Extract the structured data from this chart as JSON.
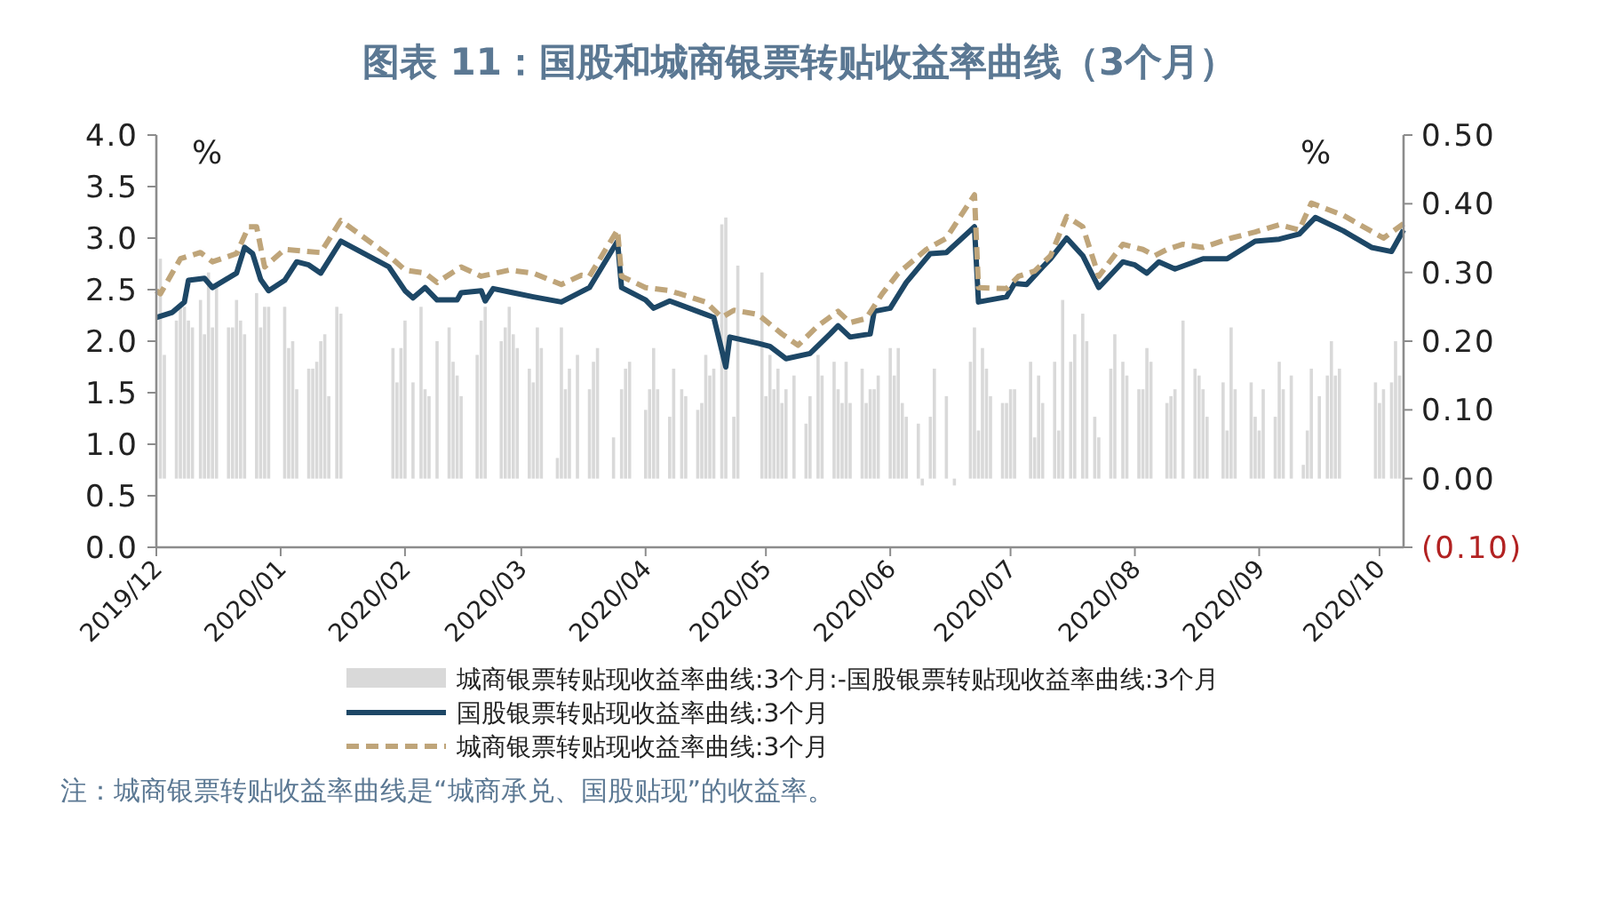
{
  "chart_data": {
    "type": "line",
    "title": "图表 11：国股和城商银票转贴收益率曲线（3个月）",
    "ylabel": "%",
    "y2label": "%",
    "xlim": [
      "2019-12-01",
      "2020-10-07"
    ],
    "xticks": [
      {
        "value": "2019-12-01",
        "label": "2019/12"
      },
      {
        "value": "2020-01-01",
        "label": "2020/01"
      },
      {
        "value": "2020-02-01",
        "label": "2020/02"
      },
      {
        "value": "2020-03-01",
        "label": "2020/03"
      },
      {
        "value": "2020-04-01",
        "label": "2020/04"
      },
      {
        "value": "2020-05-01",
        "label": "2020/05"
      },
      {
        "value": "2020-06-01",
        "label": "2020/06"
      },
      {
        "value": "2020-07-01",
        "label": "2020/07"
      },
      {
        "value": "2020-08-01",
        "label": "2020/08"
      },
      {
        "value": "2020-09-01",
        "label": "2020/09"
      },
      {
        "value": "2020-10-01",
        "label": "2020/10"
      }
    ],
    "ylim": [
      0,
      4
    ],
    "yticks": [
      {
        "value": 0,
        "label": "0.0"
      },
      {
        "value": 0.5,
        "label": "0.5"
      },
      {
        "value": 1,
        "label": "1.0"
      },
      {
        "value": 1.5,
        "label": "1.5"
      },
      {
        "value": 2,
        "label": "2.0"
      },
      {
        "value": 2.5,
        "label": "2.5"
      },
      {
        "value": 3,
        "label": "3.0"
      },
      {
        "value": 3.5,
        "label": "3.5"
      },
      {
        "value": 4,
        "label": "4.0"
      }
    ],
    "y2lim": [
      -0.1,
      0.5
    ],
    "y2ticks": [
      {
        "value": -0.1,
        "label": "(0.10)"
      },
      {
        "value": 0,
        "label": "0.00"
      },
      {
        "value": 0.1,
        "label": "0.10"
      },
      {
        "value": 0.2,
        "label": "0.20"
      },
      {
        "value": 0.3,
        "label": "0.30"
      },
      {
        "value": 0.4,
        "label": "0.40"
      },
      {
        "value": 0.5,
        "label": "0.50"
      }
    ],
    "legend": "bottom",
    "grid": false,
    "series": [
      {
        "type": "bar",
        "axis": "y2",
        "name": "城商银票转贴现收益率曲线:3个月:-国股银票转贴现收益率曲线:3个月",
        "color": "#d9d9d9",
        "x": [
          "2019-12-02",
          "2019-12-03",
          "2019-12-06",
          "2019-12-07",
          "2019-12-08",
          "2019-12-09",
          "2019-12-10",
          "2019-12-12",
          "2019-12-13",
          "2019-12-14",
          "2019-12-15",
          "2019-12-16",
          "2019-12-19",
          "2019-12-20",
          "2019-12-21",
          "2019-12-22",
          "2019-12-23",
          "2019-12-26",
          "2019-12-27",
          "2019-12-28",
          "2019-12-29",
          "2020-01-02",
          "2020-01-03",
          "2020-01-04",
          "2020-01-05",
          "2020-01-08",
          "2020-01-09",
          "2020-01-10",
          "2020-01-11",
          "2020-01-12",
          "2020-01-13",
          "2020-01-15",
          "2020-01-16",
          "2020-01-29",
          "2020-01-30",
          "2020-01-31",
          "2020-02-01",
          "2020-02-03",
          "2020-02-05",
          "2020-02-06",
          "2020-02-07",
          "2020-02-09",
          "2020-02-12",
          "2020-02-13",
          "2020-02-14",
          "2020-02-15",
          "2020-02-19",
          "2020-02-20",
          "2020-02-21",
          "2020-02-25",
          "2020-02-26",
          "2020-02-27",
          "2020-02-28",
          "2020-02-29",
          "2020-03-03",
          "2020-03-04",
          "2020-03-05",
          "2020-03-06",
          "2020-03-10",
          "2020-03-11",
          "2020-03-12",
          "2020-03-13",
          "2020-03-15",
          "2020-03-18",
          "2020-03-19",
          "2020-03-20",
          "2020-03-24",
          "2020-03-26",
          "2020-03-27",
          "2020-03-28",
          "2020-04-01",
          "2020-04-02",
          "2020-04-03",
          "2020-04-04",
          "2020-04-07",
          "2020-04-08",
          "2020-04-10",
          "2020-04-11",
          "2020-04-14",
          "2020-04-15",
          "2020-04-16",
          "2020-04-17",
          "2020-04-18",
          "2020-04-20",
          "2020-04-21",
          "2020-04-23",
          "2020-04-24",
          "2020-04-30",
          "2020-05-01",
          "2020-05-02",
          "2020-05-03",
          "2020-05-04",
          "2020-05-05",
          "2020-05-06",
          "2020-05-08",
          "2020-05-11",
          "2020-05-12",
          "2020-05-14",
          "2020-05-15",
          "2020-05-18",
          "2020-05-19",
          "2020-05-20",
          "2020-05-21",
          "2020-05-22",
          "2020-05-25",
          "2020-05-26",
          "2020-05-27",
          "2020-05-28",
          "2020-05-29",
          "2020-06-01",
          "2020-06-02",
          "2020-06-03",
          "2020-06-04",
          "2020-06-05",
          "2020-06-08",
          "2020-06-09",
          "2020-06-11",
          "2020-06-12",
          "2020-06-15",
          "2020-06-17",
          "2020-06-21",
          "2020-06-22",
          "2020-06-23",
          "2020-06-24",
          "2020-06-25",
          "2020-06-26",
          "2020-06-29",
          "2020-06-30",
          "2020-07-01",
          "2020-07-02",
          "2020-07-06",
          "2020-07-07",
          "2020-07-08",
          "2020-07-09",
          "2020-07-12",
          "2020-07-13",
          "2020-07-14",
          "2020-07-16",
          "2020-07-17",
          "2020-07-19",
          "2020-07-20",
          "2020-07-22",
          "2020-07-23",
          "2020-07-26",
          "2020-07-27",
          "2020-07-29",
          "2020-07-30",
          "2020-08-02",
          "2020-08-03",
          "2020-08-04",
          "2020-08-05",
          "2020-08-09",
          "2020-08-10",
          "2020-08-11",
          "2020-08-13",
          "2020-08-16",
          "2020-08-17",
          "2020-08-18",
          "2020-08-19",
          "2020-08-23",
          "2020-08-24",
          "2020-08-25",
          "2020-08-26",
          "2020-08-30",
          "2020-08-31",
          "2020-09-01",
          "2020-09-02",
          "2020-09-05",
          "2020-09-06",
          "2020-09-07",
          "2020-09-09",
          "2020-09-12",
          "2020-09-13",
          "2020-09-14",
          "2020-09-16",
          "2020-09-18",
          "2020-09-19",
          "2020-09-20",
          "2020-09-21",
          "2020-09-30",
          "2020-10-01",
          "2020-10-02",
          "2020-10-04",
          "2020-10-05",
          "2020-10-06"
        ],
        "values": [
          0.32,
          0.18,
          0.23,
          0.25,
          0.25,
          0.23,
          0.22,
          0.26,
          0.21,
          0.3,
          0.22,
          0.28,
          0.22,
          0.22,
          0.26,
          0.23,
          0.21,
          0.27,
          0.22,
          0.25,
          0.25,
          0.25,
          0.19,
          0.2,
          0.13,
          0.16,
          0.16,
          0.17,
          0.2,
          0.21,
          0.12,
          0.25,
          0.24,
          0.19,
          0.14,
          0.19,
          0.23,
          0.14,
          0.25,
          0.13,
          0.12,
          0.2,
          0.22,
          0.17,
          0.15,
          0.12,
          0.18,
          0.23,
          0.25,
          0.2,
          0.22,
          0.25,
          0.21,
          0.19,
          0.16,
          0.14,
          0.22,
          0.19,
          0.03,
          0.22,
          0.13,
          0.16,
          0.18,
          0.13,
          0.17,
          0.19,
          0.06,
          0.13,
          0.16,
          0.17,
          0.1,
          0.13,
          0.19,
          0.13,
          0.09,
          0.16,
          0.13,
          0.12,
          0.1,
          0.11,
          0.18,
          0.15,
          0.16,
          0.37,
          0.38,
          0.09,
          0.31,
          0.3,
          0.12,
          0.18,
          0.13,
          0.16,
          0.11,
          0.13,
          0.15,
          0.08,
          0.12,
          0.18,
          0.15,
          0.17,
          0.13,
          0.11,
          0.17,
          0.11,
          0.16,
          0.11,
          0.13,
          0.13,
          0.15,
          0.19,
          0.15,
          0.19,
          0.11,
          0.09,
          0.08,
          -0.01,
          0.09,
          0.16,
          0.12,
          -0.01,
          0.17,
          0.22,
          0.07,
          0.19,
          0.16,
          0.12,
          0.11,
          0.11,
          0.13,
          0.13,
          0.17,
          0.06,
          0.15,
          0.11,
          0.17,
          0.07,
          0.26,
          0.17,
          0.21,
          0.24,
          0.2,
          0.09,
          0.06,
          0.16,
          0.21,
          0.17,
          0.15,
          0.13,
          0.13,
          0.19,
          0.17,
          0.11,
          0.12,
          0.13,
          0.23,
          0.16,
          0.15,
          0.13,
          0.09,
          0.14,
          0.07,
          0.22,
          0.13,
          0.14,
          0.09,
          0.07,
          0.13,
          0.09,
          0.17,
          0.13,
          0.15,
          0.02,
          0.07,
          0.16,
          0.12,
          0.15,
          0.2,
          0.15,
          0.16,
          0.14,
          0.11,
          0.13,
          0.14,
          0.2,
          0.15
        ]
      },
      {
        "name": "国股银票转贴现收益率曲线:3个月",
        "color": "#1d4766",
        "line_style": "solid",
        "x": [
          "2019-12-01",
          "2019-12-05",
          "2019-12-08",
          "2019-12-09",
          "2019-12-13",
          "2019-12-15",
          "2019-12-21",
          "2019-12-23",
          "2019-12-25",
          "2019-12-27",
          "2019-12-29",
          "2020-01-02",
          "2020-01-05",
          "2020-01-08",
          "2020-01-11",
          "2020-01-16",
          "2020-01-28",
          "2020-02-01",
          "2020-02-03",
          "2020-02-06",
          "2020-02-09",
          "2020-02-14",
          "2020-02-15",
          "2020-02-20",
          "2020-02-21",
          "2020-02-23",
          "2020-02-28",
          "2020-03-04",
          "2020-03-11",
          "2020-03-18",
          "2020-03-25",
          "2020-03-26",
          "2020-04-01",
          "2020-04-03",
          "2020-04-07",
          "2020-04-16",
          "2020-04-18",
          "2020-04-21",
          "2020-04-22",
          "2020-04-29",
          "2020-05-02",
          "2020-05-06",
          "2020-05-12",
          "2020-05-17",
          "2020-05-19",
          "2020-05-22",
          "2020-05-27",
          "2020-05-28",
          "2020-06-01",
          "2020-06-05",
          "2020-06-11",
          "2020-06-15",
          "2020-06-22",
          "2020-06-23",
          "2020-06-30",
          "2020-07-02",
          "2020-07-05",
          "2020-07-09",
          "2020-07-11",
          "2020-07-15",
          "2020-07-19",
          "2020-07-23",
          "2020-07-29",
          "2020-08-01",
          "2020-08-04",
          "2020-08-07",
          "2020-08-11",
          "2020-08-18",
          "2020-08-24",
          "2020-08-31",
          "2020-09-06",
          "2020-09-11",
          "2020-09-15",
          "2020-09-22",
          "2020-09-29",
          "2020-10-04",
          "2020-10-07"
        ],
        "values": [
          2.23,
          2.28,
          2.38,
          2.59,
          2.61,
          2.52,
          2.66,
          2.91,
          2.85,
          2.6,
          2.49,
          2.59,
          2.77,
          2.74,
          2.66,
          2.97,
          2.72,
          2.49,
          2.42,
          2.52,
          2.4,
          2.4,
          2.47,
          2.49,
          2.39,
          2.51,
          2.47,
          2.43,
          2.38,
          2.52,
          2.97,
          2.52,
          2.4,
          2.32,
          2.39,
          2.26,
          2.23,
          1.75,
          2.04,
          1.98,
          1.95,
          1.83,
          1.88,
          2.07,
          2.15,
          2.04,
          2.07,
          2.29,
          2.32,
          2.57,
          2.85,
          2.86,
          3.11,
          2.38,
          2.43,
          2.56,
          2.55,
          2.72,
          2.8,
          3.0,
          2.83,
          2.52,
          2.77,
          2.74,
          2.66,
          2.77,
          2.7,
          2.8,
          2.8,
          2.97,
          2.99,
          3.04,
          3.2,
          3.07,
          2.91,
          2.87,
          3.08
        ]
      },
      {
        "name": "城商银票转贴现收益率曲线:3个月",
        "color": "#bfa57a",
        "line_style": "dashed",
        "x": [
          "2019-12-01",
          "2019-12-02",
          "2019-12-07",
          "2019-12-12",
          "2019-12-15",
          "2019-12-21",
          "2019-12-24",
          "2019-12-26",
          "2019-12-28",
          "2020-01-02",
          "2020-01-11",
          "2020-01-16",
          "2020-01-28",
          "2020-02-01",
          "2020-02-06",
          "2020-02-09",
          "2020-02-15",
          "2020-02-20",
          "2020-02-27",
          "2020-03-04",
          "2020-03-11",
          "2020-03-16",
          "2020-03-18",
          "2020-03-25",
          "2020-03-26",
          "2020-04-01",
          "2020-04-07",
          "2020-04-16",
          "2020-04-20",
          "2020-04-23",
          "2020-04-29",
          "2020-05-05",
          "2020-05-09",
          "2020-05-14",
          "2020-05-19",
          "2020-05-22",
          "2020-05-26",
          "2020-05-30",
          "2020-06-03",
          "2020-06-10",
          "2020-06-15",
          "2020-06-22",
          "2020-06-23",
          "2020-06-30",
          "2020-07-03",
          "2020-07-07",
          "2020-07-11",
          "2020-07-15",
          "2020-07-19",
          "2020-07-23",
          "2020-07-29",
          "2020-08-03",
          "2020-08-06",
          "2020-08-09",
          "2020-08-13",
          "2020-08-18",
          "2020-08-25",
          "2020-08-31",
          "2020-09-06",
          "2020-09-11",
          "2020-09-14",
          "2020-09-22",
          "2020-10-02",
          "2020-10-07"
        ],
        "values": [
          2.49,
          2.46,
          2.8,
          2.86,
          2.77,
          2.85,
          3.11,
          3.11,
          2.72,
          2.89,
          2.86,
          3.17,
          2.83,
          2.69,
          2.66,
          2.57,
          2.72,
          2.63,
          2.69,
          2.66,
          2.55,
          2.64,
          2.63,
          3.08,
          2.63,
          2.52,
          2.49,
          2.38,
          2.23,
          2.3,
          2.26,
          2.07,
          1.96,
          2.15,
          2.29,
          2.18,
          2.22,
          2.46,
          2.66,
          2.89,
          3.0,
          3.42,
          2.52,
          2.51,
          2.63,
          2.68,
          2.83,
          3.21,
          3.11,
          2.63,
          2.94,
          2.89,
          2.83,
          2.89,
          2.94,
          2.91,
          3.0,
          3.06,
          3.13,
          3.08,
          3.34,
          3.22,
          3.0,
          3.14
        ]
      }
    ],
    "annotations": [
      "注：城商银票转贴收益率曲线是“城商承兑、国股贴现”的收益率。"
    ]
  }
}
